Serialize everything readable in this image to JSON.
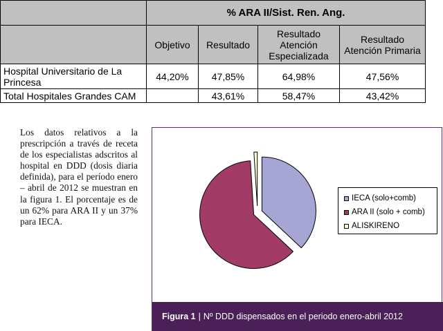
{
  "table": {
    "title": "% ARA II/Sist. Ren. Ang.",
    "columns": [
      "Objetivo",
      "Resultado",
      "Resultado Atención Especializada",
      "Resultado Atención Primaria"
    ],
    "rows": [
      {
        "label": "Hospital Universitario de La Princesa",
        "objetivo": "44,20%",
        "resultado": "47,85%",
        "especializada": "64,98%",
        "primaria": "47,56%"
      },
      {
        "label": "Total Hospitales Grandes CAM",
        "objetivo": "",
        "resultado": "43,61%",
        "especializada": "58,47%",
        "primaria": "43,42%"
      }
    ]
  },
  "paragraph": "Los datos relativos a la prescripción a través de receta de los especialistas adscritos al hospital en DDD (dosis diaria definida), para el período enero – abril de 2012 se muestran en la figura 1. El porcentaje es de un 62% para ARA II y un 37% para IECA.",
  "figure": {
    "caption_label": "Figura 1",
    "caption_separator": "|",
    "caption_text": "Nº DDD dispensados en el periodo enero-abril 2012"
  },
  "chart_data": {
    "type": "pie",
    "title": "",
    "exploded": true,
    "slices": [
      {
        "label": "IECA (solo+comb)",
        "value": 37,
        "color": "#a6a6d4"
      },
      {
        "label": "ARA II (solo + comb)",
        "value": 62,
        "color": "#a23c66"
      },
      {
        "label": "ALISKIRENO",
        "value": 1,
        "color": "#ffffd6"
      }
    ],
    "legend_position": "right"
  }
}
